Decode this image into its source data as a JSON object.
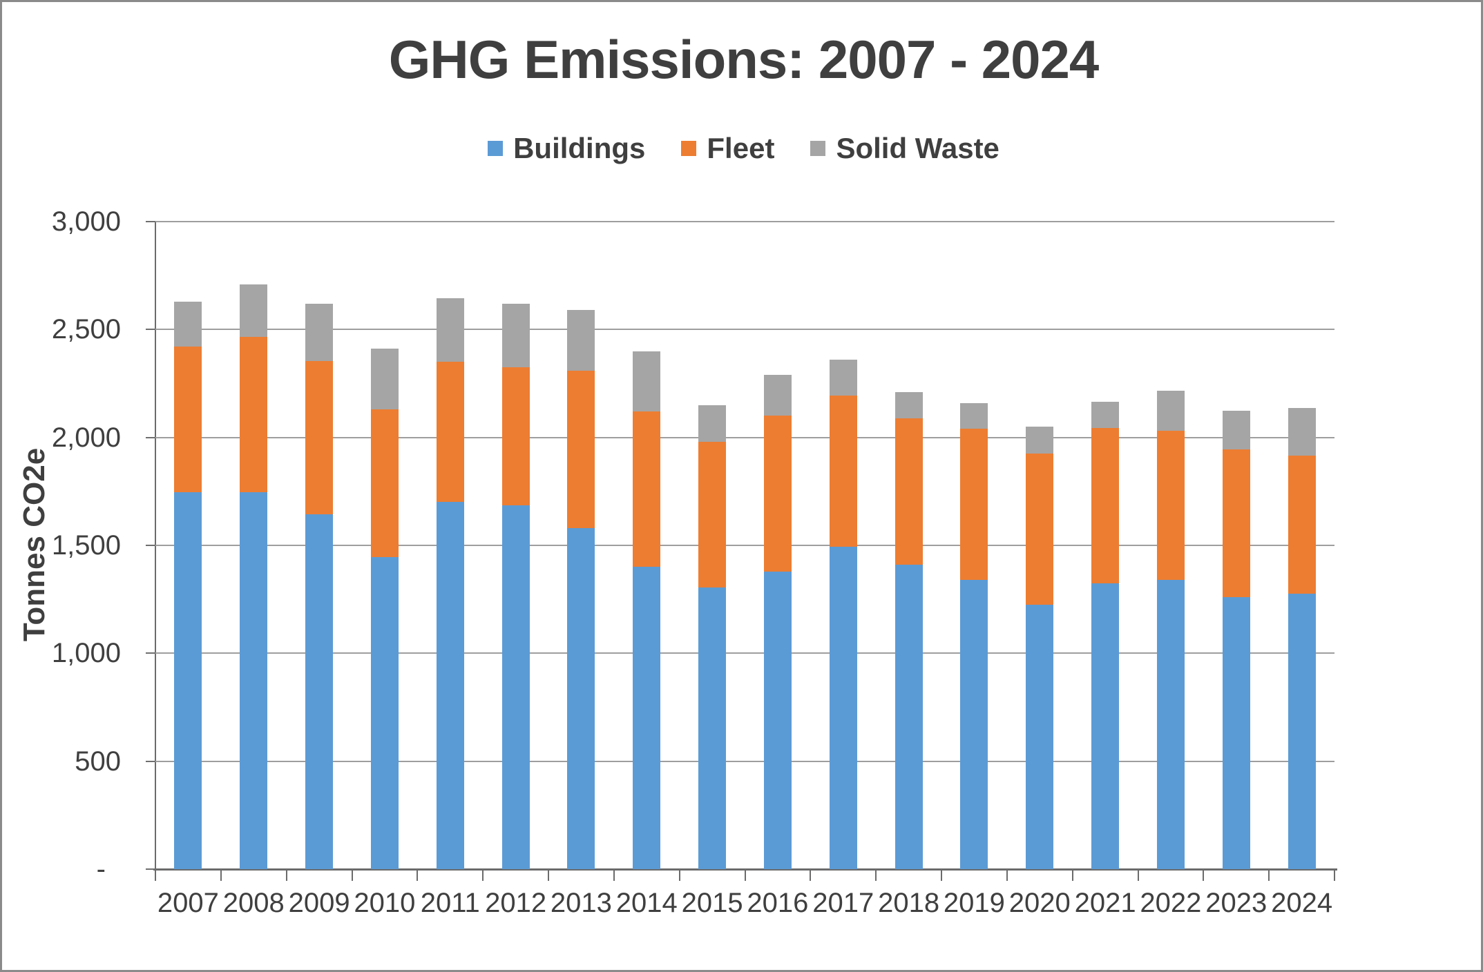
{
  "title": "GHG Emissions: 2007 - 2024",
  "colors": {
    "buildings": "#5B9BD5",
    "fleet": "#ED7D31",
    "solid_waste": "#A5A5A5",
    "text": "#3F3F3F",
    "axis_line": "#6B6B6B",
    "gridline": "#9E9E9E",
    "canvas_border": "#8A8A8A"
  },
  "legend": {
    "position": "top",
    "items": [
      {
        "label": "Buildings",
        "color": "#5B9BD5"
      },
      {
        "label": "Fleet",
        "color": "#ED7D31"
      },
      {
        "label": "Solid Waste",
        "color": "#A5A5A5"
      }
    ]
  },
  "y_axis": {
    "title": "Tonnes CO2e",
    "tick_labels_top_to_bottom": [
      "3,000",
      "2,500",
      "2,000",
      "1,500",
      "1,000",
      "500",
      "-"
    ],
    "min": 0,
    "max": 3000,
    "step": 500
  },
  "chart_data": {
    "type": "bar",
    "stacked": true,
    "title": "GHG Emissions: 2007 - 2024",
    "xlabel": "",
    "ylabel": "Tonnes CO2e",
    "ylim": [
      0,
      3000
    ],
    "grid": true,
    "legend_position": "top",
    "categories": [
      "2007",
      "2008",
      "2009",
      "2010",
      "2011",
      "2012",
      "2013",
      "2014",
      "2015",
      "2016",
      "2017",
      "2018",
      "2019",
      "2020",
      "2021",
      "2022",
      "2023",
      "2024"
    ],
    "series": [
      {
        "name": "Buildings",
        "color": "#5B9BD5",
        "values": [
          1745,
          1745,
          1645,
          1445,
          1700,
          1685,
          1580,
          1400,
          1305,
          1380,
          1495,
          1410,
          1340,
          1225,
          1325,
          1340,
          1260,
          1275
        ]
      },
      {
        "name": "Fleet",
        "color": "#ED7D31",
        "values": [
          675,
          720,
          710,
          685,
          650,
          640,
          730,
          720,
          675,
          720,
          700,
          680,
          700,
          700,
          720,
          690,
          685,
          640
        ]
      },
      {
        "name": "Solid Waste",
        "color": "#A5A5A5",
        "values": [
          210,
          245,
          265,
          280,
          295,
          295,
          280,
          280,
          170,
          190,
          165,
          120,
          120,
          125,
          120,
          185,
          180,
          220
        ]
      }
    ]
  }
}
